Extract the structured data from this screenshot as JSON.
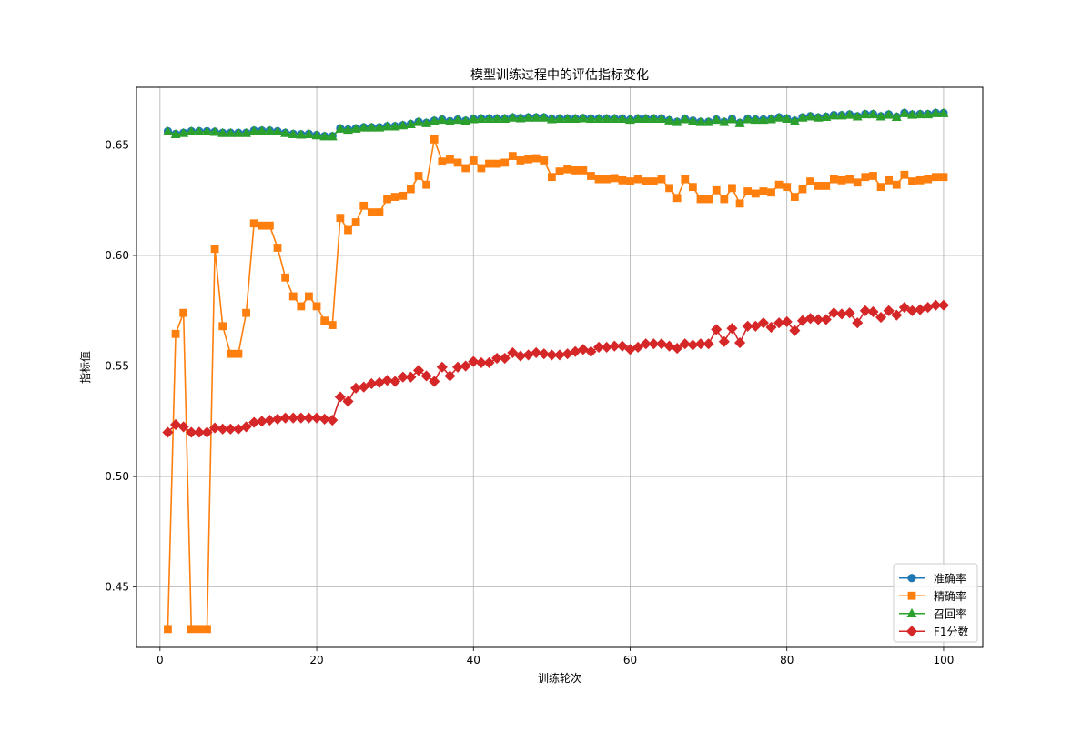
{
  "chart_data": {
    "type": "line",
    "title": "模型训练过程中的评估指标变化",
    "xlabel": "训练轮次",
    "ylabel": "指标值",
    "xlim": [
      -3,
      105
    ],
    "ylim": [
      0.4227,
      0.6761
    ],
    "xticks": [
      0,
      20,
      40,
      60,
      80,
      100
    ],
    "yticks": [
      0.45,
      0.5,
      0.55,
      0.6,
      0.65
    ],
    "ytick_labels": [
      "0.45",
      "0.50",
      "0.55",
      "0.60",
      "0.65"
    ],
    "grid": true,
    "legend_position": "lower-right",
    "x": [
      1,
      2,
      3,
      4,
      5,
      6,
      7,
      8,
      9,
      10,
      11,
      12,
      13,
      14,
      15,
      16,
      17,
      18,
      19,
      20,
      21,
      22,
      23,
      24,
      25,
      26,
      27,
      28,
      29,
      30,
      31,
      32,
      33,
      34,
      35,
      36,
      37,
      38,
      39,
      40,
      41,
      42,
      43,
      44,
      45,
      46,
      47,
      48,
      49,
      50,
      51,
      52,
      53,
      54,
      55,
      56,
      57,
      58,
      59,
      60,
      61,
      62,
      63,
      64,
      65,
      66,
      67,
      68,
      69,
      70,
      71,
      72,
      73,
      74,
      75,
      76,
      77,
      78,
      79,
      80,
      81,
      82,
      83,
      84,
      85,
      86,
      87,
      88,
      89,
      90,
      91,
      92,
      93,
      94,
      95,
      96,
      97,
      98,
      99,
      100
    ],
    "series": [
      {
        "name": "准确率",
        "color": "#1f77b4",
        "marker": "circle",
        "values": [
          0.6562,
          0.655,
          0.6555,
          0.6562,
          0.6562,
          0.6562,
          0.656,
          0.6555,
          0.6555,
          0.6555,
          0.6555,
          0.6565,
          0.6565,
          0.6565,
          0.6562,
          0.6555,
          0.655,
          0.6548,
          0.655,
          0.6545,
          0.654,
          0.654,
          0.6575,
          0.657,
          0.6575,
          0.658,
          0.658,
          0.658,
          0.6585,
          0.6585,
          0.659,
          0.6595,
          0.6605,
          0.66,
          0.661,
          0.6615,
          0.6608,
          0.6615,
          0.661,
          0.6618,
          0.662,
          0.662,
          0.662,
          0.662,
          0.6625,
          0.6622,
          0.6625,
          0.6625,
          0.6625,
          0.6618,
          0.662,
          0.662,
          0.662,
          0.6622,
          0.662,
          0.662,
          0.662,
          0.662,
          0.662,
          0.6615,
          0.662,
          0.662,
          0.662,
          0.662,
          0.6612,
          0.6605,
          0.6618,
          0.661,
          0.6605,
          0.6605,
          0.6615,
          0.6605,
          0.6618,
          0.66,
          0.6618,
          0.6615,
          0.6615,
          0.6618,
          0.6625,
          0.662,
          0.661,
          0.6625,
          0.663,
          0.6625,
          0.6628,
          0.6635,
          0.6635,
          0.6638,
          0.663,
          0.664,
          0.664,
          0.663,
          0.6638,
          0.6628,
          0.6645,
          0.6638,
          0.664,
          0.664,
          0.6645,
          0.6645
        ]
      },
      {
        "name": "精确率",
        "color": "#ff7f0e",
        "marker": "square",
        "values": [
          0.431,
          0.5645,
          0.574,
          0.431,
          0.431,
          0.431,
          0.603,
          0.568,
          0.5555,
          0.5555,
          0.574,
          0.6145,
          0.6135,
          0.6135,
          0.6035,
          0.59,
          0.5815,
          0.577,
          0.5815,
          0.577,
          0.5705,
          0.5685,
          0.617,
          0.6115,
          0.615,
          0.6225,
          0.6195,
          0.6195,
          0.6255,
          0.6265,
          0.627,
          0.63,
          0.636,
          0.632,
          0.6525,
          0.6425,
          0.6435,
          0.642,
          0.6395,
          0.643,
          0.6395,
          0.6415,
          0.6415,
          0.642,
          0.645,
          0.643,
          0.6435,
          0.644,
          0.643,
          0.6355,
          0.638,
          0.639,
          0.6385,
          0.6385,
          0.636,
          0.6345,
          0.6345,
          0.635,
          0.634,
          0.6335,
          0.6345,
          0.6335,
          0.6335,
          0.6345,
          0.6305,
          0.626,
          0.6345,
          0.631,
          0.6255,
          0.6255,
          0.6295,
          0.6255,
          0.6305,
          0.6235,
          0.629,
          0.628,
          0.629,
          0.6285,
          0.632,
          0.631,
          0.6265,
          0.63,
          0.6335,
          0.6315,
          0.6315,
          0.6345,
          0.634,
          0.6345,
          0.633,
          0.6355,
          0.636,
          0.631,
          0.634,
          0.632,
          0.6365,
          0.6335,
          0.634,
          0.6345,
          0.6355,
          0.6355
        ]
      },
      {
        "name": "召回率",
        "color": "#2ca02c",
        "marker": "triangle",
        "values": [
          0.656,
          0.6548,
          0.6553,
          0.656,
          0.656,
          0.656,
          0.6558,
          0.6553,
          0.6553,
          0.6553,
          0.6553,
          0.6563,
          0.6563,
          0.6563,
          0.656,
          0.6553,
          0.6548,
          0.6546,
          0.6548,
          0.6543,
          0.6538,
          0.6538,
          0.6573,
          0.6568,
          0.6573,
          0.6578,
          0.6578,
          0.6578,
          0.6583,
          0.6583,
          0.6588,
          0.6593,
          0.6603,
          0.6598,
          0.6608,
          0.6613,
          0.6606,
          0.6613,
          0.6608,
          0.6616,
          0.6618,
          0.6618,
          0.6618,
          0.6618,
          0.6623,
          0.662,
          0.6623,
          0.6623,
          0.6623,
          0.6616,
          0.6618,
          0.6618,
          0.6618,
          0.662,
          0.6618,
          0.6618,
          0.6618,
          0.6618,
          0.6618,
          0.6613,
          0.6618,
          0.6618,
          0.6618,
          0.6618,
          0.661,
          0.6603,
          0.6616,
          0.6608,
          0.6603,
          0.6603,
          0.6613,
          0.6603,
          0.6616,
          0.6598,
          0.6616,
          0.6613,
          0.6613,
          0.6616,
          0.6623,
          0.6618,
          0.6608,
          0.6623,
          0.6628,
          0.6623,
          0.6626,
          0.6633,
          0.6633,
          0.6636,
          0.6628,
          0.6638,
          0.6638,
          0.6628,
          0.6636,
          0.6626,
          0.6643,
          0.6636,
          0.6638,
          0.6638,
          0.6643,
          0.6643
        ]
      },
      {
        "name": "F1分数",
        "color": "#d62728",
        "marker": "diamond",
        "values": [
          0.52,
          0.5235,
          0.5225,
          0.52,
          0.52,
          0.52,
          0.522,
          0.5215,
          0.5215,
          0.5215,
          0.5225,
          0.5245,
          0.525,
          0.5255,
          0.526,
          0.5265,
          0.5265,
          0.5265,
          0.5265,
          0.5265,
          0.526,
          0.5255,
          0.536,
          0.534,
          0.54,
          0.5405,
          0.542,
          0.5425,
          0.5435,
          0.543,
          0.545,
          0.545,
          0.548,
          0.5455,
          0.543,
          0.5495,
          0.5455,
          0.5495,
          0.55,
          0.552,
          0.5515,
          0.5515,
          0.5535,
          0.5535,
          0.556,
          0.5545,
          0.555,
          0.556,
          0.5555,
          0.555,
          0.555,
          0.5555,
          0.5565,
          0.5575,
          0.5565,
          0.5585,
          0.5585,
          0.559,
          0.559,
          0.5575,
          0.5585,
          0.56,
          0.56,
          0.56,
          0.559,
          0.558,
          0.56,
          0.5595,
          0.56,
          0.56,
          0.5665,
          0.561,
          0.567,
          0.5605,
          0.568,
          0.568,
          0.5695,
          0.5675,
          0.5695,
          0.57,
          0.566,
          0.5705,
          0.5715,
          0.571,
          0.571,
          0.574,
          0.5735,
          0.574,
          0.5695,
          0.575,
          0.5745,
          0.572,
          0.575,
          0.573,
          0.5765,
          0.575,
          0.5755,
          0.5765,
          0.5775,
          0.5775
        ]
      }
    ]
  }
}
